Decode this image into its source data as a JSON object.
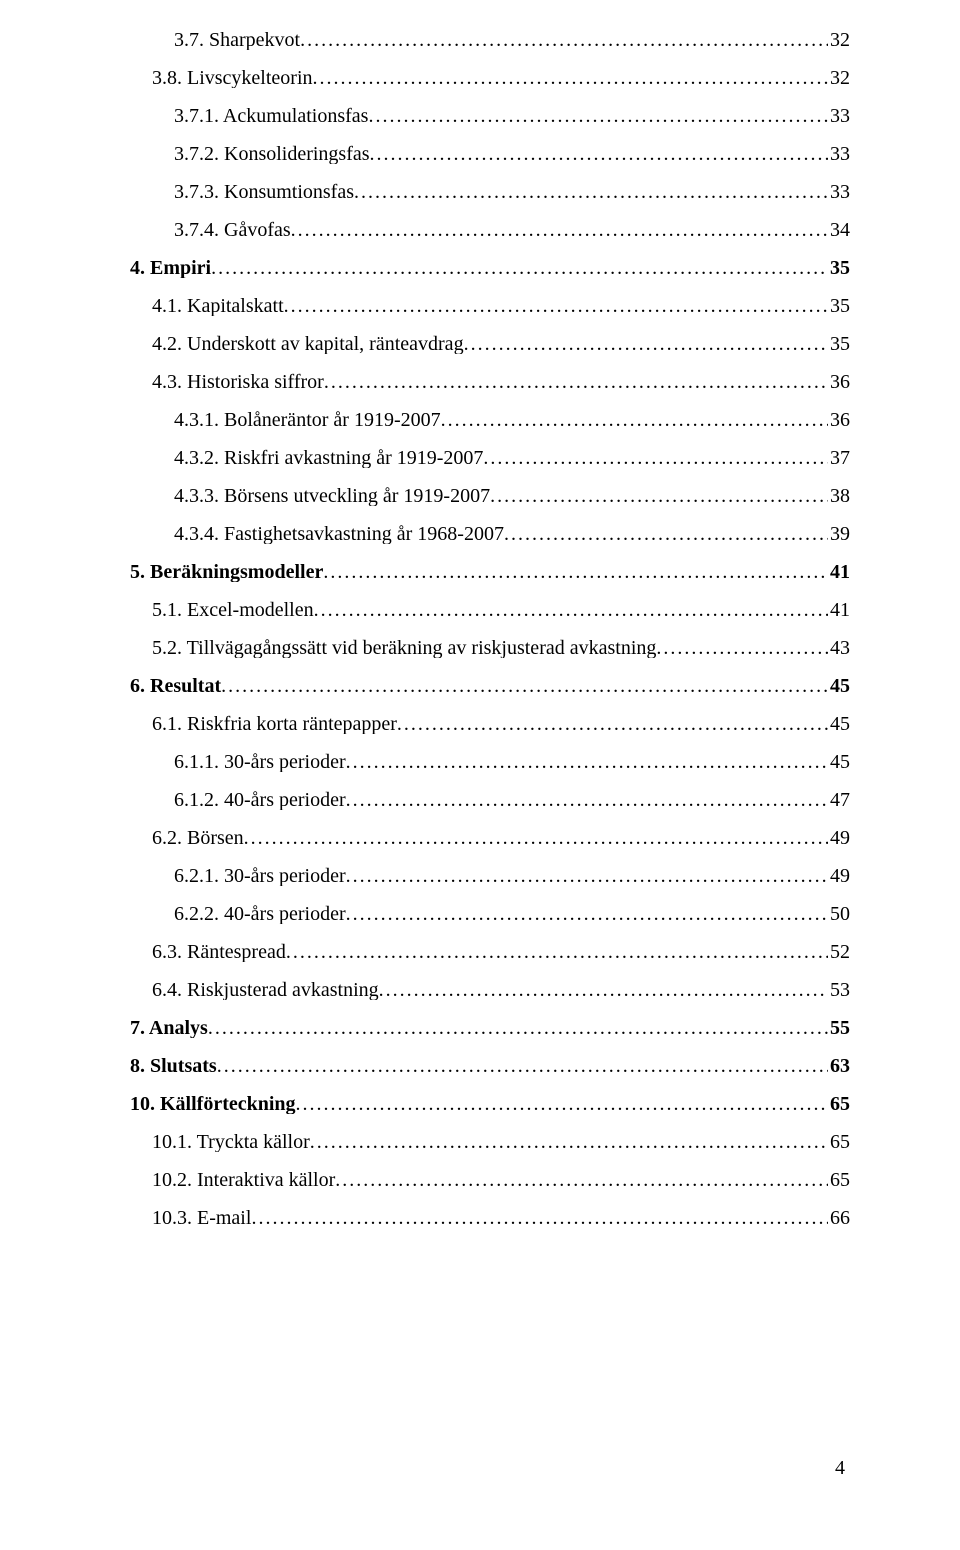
{
  "page_number": "4",
  "toc": [
    {
      "level": 2,
      "bold": false,
      "label": "3.7. Sharpekvot",
      "page": "32"
    },
    {
      "level": 1,
      "bold": false,
      "label": "3.8. Livscykelteorin",
      "page": "32"
    },
    {
      "level": 2,
      "bold": false,
      "label": "3.7.1. Ackumulationsfas",
      "page": "33"
    },
    {
      "level": 2,
      "bold": false,
      "label": "3.7.2. Konsolideringsfas",
      "page": "33"
    },
    {
      "level": 2,
      "bold": false,
      "label": "3.7.3. Konsumtionsfas",
      "page": "33"
    },
    {
      "level": 2,
      "bold": false,
      "label": "3.7.4. Gåvofas",
      "page": "34"
    },
    {
      "level": 0,
      "bold": true,
      "label": "4. Empiri",
      "page": "35"
    },
    {
      "level": 1,
      "bold": false,
      "label": "4.1. Kapitalskatt",
      "page": "35"
    },
    {
      "level": 1,
      "bold": false,
      "label": "4.2. Underskott av kapital, ränteavdrag",
      "page": "35"
    },
    {
      "level": 1,
      "bold": false,
      "label": "4.3. Historiska siffror",
      "page": "36"
    },
    {
      "level": 2,
      "bold": false,
      "label": "4.3.1. Bolåneräntor år 1919-2007",
      "page": "36"
    },
    {
      "level": 2,
      "bold": false,
      "label": "4.3.2. Riskfri avkastning år 1919-2007",
      "page": "37"
    },
    {
      "level": 2,
      "bold": false,
      "label": "4.3.3. Börsens utveckling år 1919-2007",
      "page": "38"
    },
    {
      "level": 2,
      "bold": false,
      "label": "4.3.4. Fastighetsavkastning år 1968-2007",
      "page": "39"
    },
    {
      "level": 0,
      "bold": true,
      "label": "5. Beräkningsmodeller",
      "page": "41"
    },
    {
      "level": 1,
      "bold": false,
      "label": "5.1. Excel-modellen",
      "page": "41"
    },
    {
      "level": 1,
      "bold": false,
      "label": "5.2. Tillvägagångssätt vid beräkning av riskjusterad avkastning",
      "page": "43"
    },
    {
      "level": 0,
      "bold": true,
      "label": "6. Resultat",
      "page": "45"
    },
    {
      "level": 1,
      "bold": false,
      "label": "6.1. Riskfria korta räntepapper",
      "page": "45"
    },
    {
      "level": 2,
      "bold": false,
      "label": "6.1.1. 30-års perioder",
      "page": "45"
    },
    {
      "level": 2,
      "bold": false,
      "label": "6.1.2. 40-års perioder",
      "page": "47"
    },
    {
      "level": 1,
      "bold": false,
      "label": "6.2. Börsen",
      "page": "49"
    },
    {
      "level": 2,
      "bold": false,
      "label": "6.2.1. 30-års perioder",
      "page": "49"
    },
    {
      "level": 2,
      "bold": false,
      "label": "6.2.2. 40-års perioder",
      "page": "50"
    },
    {
      "level": 1,
      "bold": false,
      "label": "6.3. Räntespread",
      "page": "52"
    },
    {
      "level": 1,
      "bold": false,
      "label": "6.4. Riskjusterad avkastning",
      "page": "53"
    },
    {
      "level": 0,
      "bold": true,
      "label": "7. Analys",
      "page": "55"
    },
    {
      "level": 0,
      "bold": true,
      "label": "8. Slutsats",
      "page": "63"
    },
    {
      "level": 0,
      "bold": true,
      "label": "10. Källförteckning",
      "page": "65"
    },
    {
      "level": 1,
      "bold": false,
      "label": "10.1. Tryckta källor",
      "page": "65"
    },
    {
      "level": 1,
      "bold": false,
      "label": "10.2. Interaktiva källor",
      "page": "65"
    },
    {
      "level": 1,
      "bold": false,
      "label": "10.3. E-mail",
      "page": "66"
    }
  ]
}
